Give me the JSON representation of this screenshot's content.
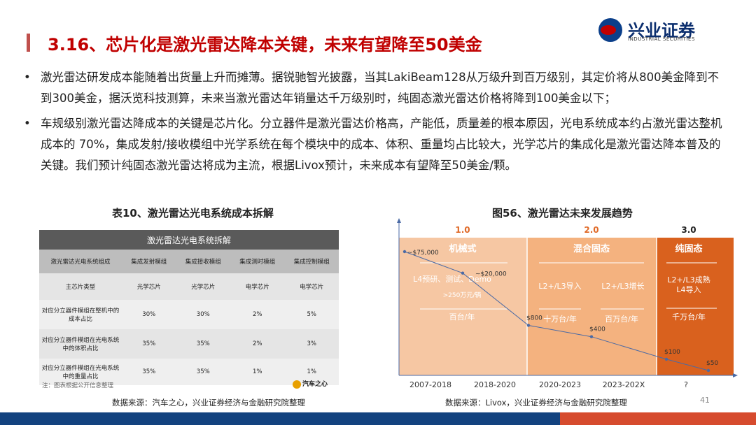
{
  "header": {
    "title": "3.16、芯片化是激光雷达降本关键，未来有望降至50美金",
    "logo_cn": "兴业证券",
    "logo_en": "INDUSTRIAL SECURITIES"
  },
  "bullets": [
    "激光雷达研发成本能随着出货量上升而摊薄。据锐驰智光披露，当其LakiBeam128从万级升到百万级别，其定价将从800美金降到不到300美金，据沃览科技测算，未来当激光雷达年销量达千万级别时，纯固态激光雷达价格将降到100美金以下；",
    "车规级别激光雷达降成本的关键是芯片化。分立器件是激光雷达价格高，产能低，质量差的根本原因，光电系统成本约占激光雷达整机成本的 70%，集成发射/接收模组中光学系统在每个模块中的成本、体积、重量均占比较大，光学芯片的集成化是激光雷达降本普及的关键。我们预计纯固态激光雷达将成为主流，根据Livox预计，未来成本有望降至50美金/颗。"
  ],
  "table": {
    "caption": "表10、激光雷达光电系统成本拆解",
    "title": "激光雷达光电系统拆解",
    "columns": [
      "激光雷达光电系统组成",
      "集成发射模组",
      "集成接收模组",
      "集成测时模组",
      "集成控制模组"
    ],
    "rows": [
      [
        "主芯片类型",
        "光学芯片",
        "光学芯片",
        "电学芯片",
        "电学芯片"
      ],
      [
        "对应分立器件模组在整机中的成本占比",
        "30%",
        "30%",
        "2%",
        "5%"
      ],
      [
        "对应分立器件模组在光电系统中的体积占比",
        "35%",
        "35%",
        "2%",
        "3%"
      ],
      [
        "对应分立器件模组在光电系统中的重量占比",
        "35%",
        "35%",
        "1%",
        "1%"
      ]
    ],
    "note": "注：图表根据公开信息整理",
    "logo": "汽车之心",
    "source": "数据来源：汽车之心，兴业证券经济与金融研究院整理"
  },
  "chart": {
    "caption": "图56、激光雷达未来发展趋势",
    "source": "数据来源：Livox，兴业证券经济与金融研究院整理",
    "colors": {
      "band1": "#f6c7a3",
      "band2": "#f4b27f",
      "band3": "#d9611e",
      "label": "#e06a28"
    }
  },
  "chart_data": {
    "type": "line",
    "stages": [
      {
        "version": "1.0",
        "name": "机械式",
        "details": [
          "L4预研、测试、Demo",
          ">250万元/辆",
          "百台/年"
        ]
      },
      {
        "version": "2.0",
        "name": "混合固态",
        "details": [
          "L2+/L3导入",
          "L2+/L3增长",
          "十万台/年",
          "百万台/年"
        ]
      },
      {
        "version": "3.0",
        "name": "纯固态",
        "details": [
          "L2+/L3成熟",
          "L4导入",
          "千万台/年"
        ]
      }
    ],
    "categories": [
      "2007-2018",
      "2018-2020",
      "2020-2023",
      "2023-202X",
      "?"
    ],
    "points": [
      {
        "label": "~$75,000",
        "value": 75000
      },
      {
        "label": "~$20,000",
        "value": 20000
      },
      {
        "label": "$800",
        "value": 800
      },
      {
        "label": "$400",
        "value": 400
      },
      {
        "label": "$100",
        "value": 100
      },
      {
        "label": "$50",
        "value": 50
      }
    ]
  },
  "page_number": "41"
}
